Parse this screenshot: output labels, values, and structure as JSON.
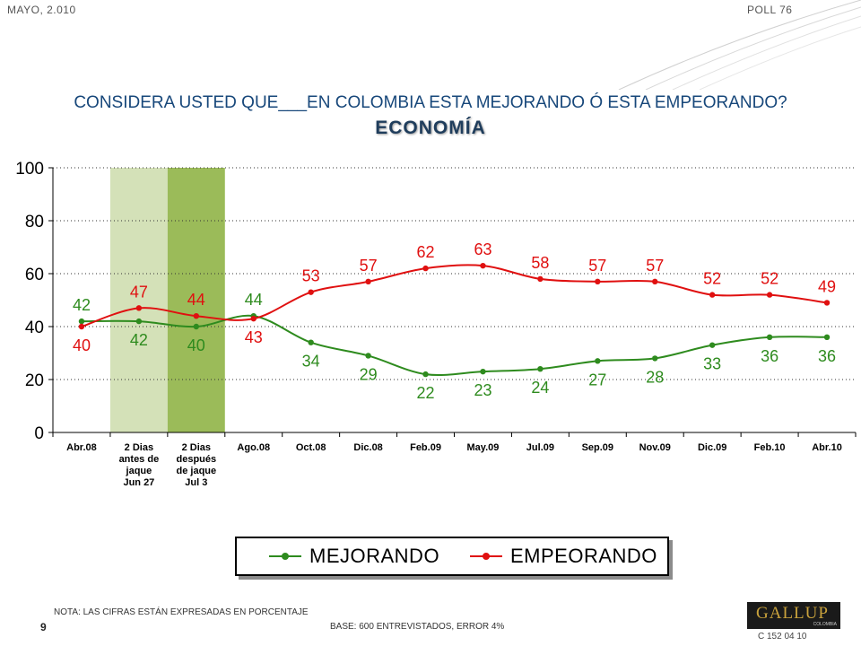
{
  "header": {
    "date": "MAYO, 2.010",
    "poll": "POLL 76"
  },
  "title": "CONSIDERA USTED QUE___EN COLOMBIA ESTA MEJORANDO Ó ESTA EMPEORANDO?",
  "subtitle": "ECONOMÍA",
  "chart_data": {
    "type": "line",
    "categories": [
      [
        "Abr.08"
      ],
      [
        "2 Dias",
        "antes de",
        "jaque",
        "Jun 27"
      ],
      [
        "2 Dias",
        "después",
        "de jaque",
        "Jul 3"
      ],
      [
        "Ago.08"
      ],
      [
        "Oct.08"
      ],
      [
        "Dic.08"
      ],
      [
        "Feb.09"
      ],
      [
        "May.09"
      ],
      [
        "Jul.09"
      ],
      [
        "Sep.09"
      ],
      [
        "Nov.09"
      ],
      [
        "Dic.09"
      ],
      [
        "Feb.10"
      ],
      [
        "Abr.10"
      ]
    ],
    "series": [
      {
        "name": "MEJORANDO",
        "color": "#2e8b1e",
        "values": [
          42,
          42,
          40,
          44,
          34,
          29,
          22,
          23,
          24,
          27,
          28,
          33,
          36,
          36
        ]
      },
      {
        "name": "EMPEORANDO",
        "color": "#e01010",
        "values": [
          40,
          47,
          44,
          43,
          53,
          57,
          62,
          63,
          58,
          57,
          57,
          52,
          52,
          49
        ]
      }
    ],
    "ylim": [
      0,
      100
    ],
    "yticks": [
      0,
      20,
      40,
      60,
      80,
      100
    ],
    "grid": "horizontal-dotted",
    "highlight_bands": [
      {
        "category_index": 1,
        "color": "#d4e1b8"
      },
      {
        "category_index": 2,
        "color": "#9bbb59"
      }
    ],
    "legend_position": "bottom",
    "axis_color": "#000000"
  },
  "footer": {
    "note": "NOTA: LAS CIFRAS ESTÁN EXPRESADAS EN PORCENTAJE",
    "base": "BASE: 600 ENTREVISTADOS, ERROR 4%",
    "page": "9",
    "logo_text": "GALLUP",
    "logo_sub": "COLOMBIA",
    "code": "C 152 04 10"
  }
}
